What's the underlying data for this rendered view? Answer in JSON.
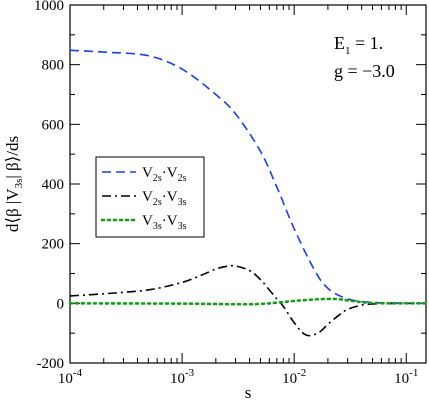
{
  "chart_data": {
    "type": "line",
    "xscale": "log",
    "xlim": [
      0.0001,
      0.15
    ],
    "ylim": [
      -200,
      1000
    ],
    "xlabel": "s",
    "ylabel": {
      "prefix": "d⟨β |V",
      "sub": "3s",
      "suffix": "| β⟩/ds"
    },
    "x_ticks": [
      {
        "value": 0.0001,
        "base": "10",
        "exp": "-4"
      },
      {
        "value": 0.001,
        "base": "10",
        "exp": "-3"
      },
      {
        "value": 0.01,
        "base": "10",
        "exp": "-2"
      },
      {
        "value": 0.1,
        "base": "10",
        "exp": "-1"
      }
    ],
    "y_ticks": [
      {
        "value": -200,
        "label": "-200"
      },
      {
        "value": 0,
        "label": "0"
      },
      {
        "value": 200,
        "label": "200"
      },
      {
        "value": 400,
        "label": "400"
      },
      {
        "value": 600,
        "label": "600"
      },
      {
        "value": 800,
        "label": "800"
      },
      {
        "value": 1000,
        "label": "1000"
      }
    ],
    "annotations": [
      {
        "main": "E",
        "sub": "1",
        "rest": " = 1."
      },
      {
        "main": "g = −3.0",
        "sub": "",
        "rest": ""
      }
    ],
    "legend_position": "left",
    "series": [
      {
        "legend": {
          "a": "V",
          "asub": "2s",
          "b": "·V",
          "bsub": "2s"
        },
        "color": "#1f3fd6",
        "dash": "dashed",
        "x": [
          0.0001,
          0.0002,
          0.0005,
          0.001,
          0.002,
          0.003,
          0.005,
          0.007,
          0.01,
          0.015,
          0.02,
          0.03,
          0.05,
          0.1,
          0.15
        ],
        "y": [
          848,
          842,
          830,
          785,
          700,
          635,
          510,
          390,
          250,
          115,
          50,
          15,
          3,
          0,
          0
        ]
      },
      {
        "legend": {
          "a": "V",
          "asub": "2s",
          "b": "·V",
          "bsub": "3s"
        },
        "color": "#000000",
        "dash": "dashdot",
        "x": [
          0.0001,
          0.0002,
          0.0005,
          0.001,
          0.0015,
          0.002,
          0.0025,
          0.003,
          0.004,
          0.005,
          0.006,
          0.007,
          0.008,
          0.01,
          0.012,
          0.014,
          0.017,
          0.02,
          0.025,
          0.03,
          0.04,
          0.05,
          0.07,
          0.1,
          0.15
        ],
        "y": [
          25,
          32,
          45,
          70,
          95,
          115,
          124,
          125,
          110,
          80,
          45,
          15,
          -10,
          -65,
          -100,
          -108,
          -95,
          -70,
          -40,
          -20,
          -6,
          -2,
          -1,
          0,
          0
        ]
      },
      {
        "legend": {
          "a": "V",
          "asub": "3s",
          "b": "·V",
          "bsub": "3s"
        },
        "color": "#1a9a1a",
        "dash": "dotted",
        "x": [
          0.0001,
          0.001,
          0.003,
          0.005,
          0.007,
          0.01,
          0.015,
          0.02,
          0.025,
          0.03,
          0.04,
          0.05,
          0.07,
          0.1,
          0.15
        ],
        "y": [
          0,
          -1,
          -3,
          -2,
          2,
          8,
          13,
          15,
          14,
          10,
          4,
          1,
          0,
          0,
          0
        ]
      }
    ]
  }
}
